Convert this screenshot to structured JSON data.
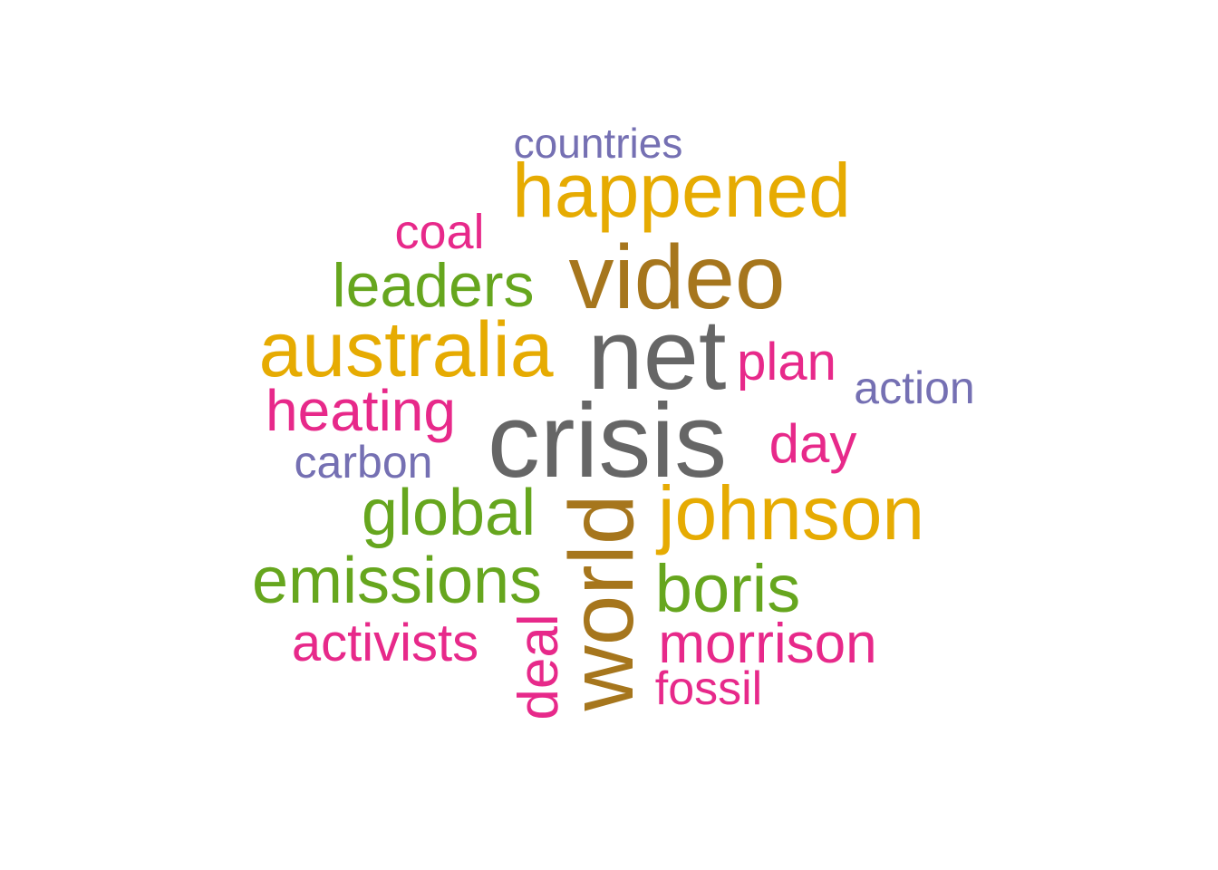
{
  "word_cloud": {
    "palette": {
      "gray": "#666666",
      "olive": "#a6761d",
      "gold": "#e6ab02",
      "green": "#66a61e",
      "magenta": "#e7298a",
      "purple": "#7570b3"
    },
    "words": [
      {
        "text": "countries",
        "color": "#7570b3"
      },
      {
        "text": "happened",
        "color": "#e6ab02"
      },
      {
        "text": "coal",
        "color": "#e7298a"
      },
      {
        "text": "leaders",
        "color": "#66a61e"
      },
      {
        "text": "video",
        "color": "#a6761d"
      },
      {
        "text": "australia",
        "color": "#e6ab02"
      },
      {
        "text": "net",
        "color": "#666666"
      },
      {
        "text": "plan",
        "color": "#e7298a"
      },
      {
        "text": "action",
        "color": "#7570b3"
      },
      {
        "text": "heating",
        "color": "#e7298a"
      },
      {
        "text": "crisis",
        "color": "#666666"
      },
      {
        "text": "day",
        "color": "#e7298a"
      },
      {
        "text": "carbon",
        "color": "#7570b3"
      },
      {
        "text": "global",
        "color": "#66a61e"
      },
      {
        "text": "johnson",
        "color": "#e6ab02"
      },
      {
        "text": "world",
        "color": "#a6761d"
      },
      {
        "text": "emissions",
        "color": "#66a61e"
      },
      {
        "text": "boris",
        "color": "#66a61e"
      },
      {
        "text": "activists",
        "color": "#e7298a"
      },
      {
        "text": "deal",
        "color": "#e7298a"
      },
      {
        "text": "morrison",
        "color": "#e7298a"
      },
      {
        "text": "fossil",
        "color": "#e7298a"
      }
    ]
  }
}
